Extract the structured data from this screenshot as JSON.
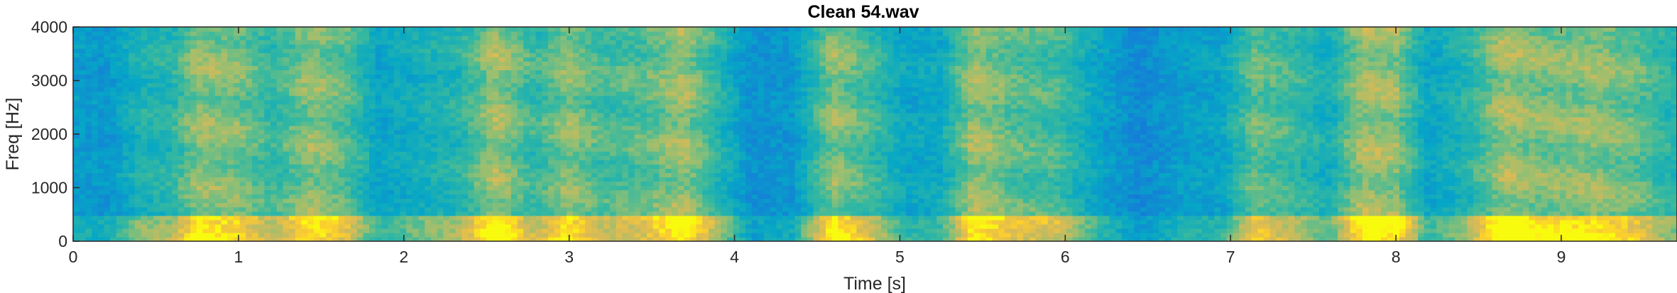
{
  "chart_data": {
    "type": "heatmap",
    "subtype": "spectrogram",
    "title": "Clean 54.wav",
    "xlabel": "Time [s]",
    "ylabel": "Freq [Hz]",
    "xlim": [
      0,
      9.7
    ],
    "ylim": [
      0,
      4000
    ],
    "xticks": [
      0,
      1,
      2,
      3,
      4,
      5,
      6,
      7,
      8,
      9
    ],
    "yticks": [
      0,
      1000,
      2000,
      3000,
      4000
    ],
    "colormap": "parula",
    "colors": {
      "low": "#3a6ee6",
      "mid": "#1fb8a8",
      "midhigh": "#9ac940",
      "high": "#f2cf2e",
      "peak": "#f9f21c",
      "frame": "#262626"
    },
    "energy_profile": [
      {
        "t": 0.0,
        "e": 0.3
      },
      {
        "t": 0.2,
        "e": 0.25
      },
      {
        "t": 0.4,
        "e": 0.5
      },
      {
        "t": 0.6,
        "e": 0.55
      },
      {
        "t": 0.75,
        "e": 0.85
      },
      {
        "t": 1.0,
        "e": 0.8
      },
      {
        "t": 1.2,
        "e": 0.6
      },
      {
        "t": 1.45,
        "e": 0.85
      },
      {
        "t": 1.65,
        "e": 0.7
      },
      {
        "t": 1.85,
        "e": 0.35
      },
      {
        "t": 2.1,
        "e": 0.45
      },
      {
        "t": 2.35,
        "e": 0.55
      },
      {
        "t": 2.55,
        "e": 0.9
      },
      {
        "t": 2.8,
        "e": 0.6
      },
      {
        "t": 3.0,
        "e": 0.85
      },
      {
        "t": 3.2,
        "e": 0.65
      },
      {
        "t": 3.45,
        "e": 0.7
      },
      {
        "t": 3.7,
        "e": 0.9
      },
      {
        "t": 3.9,
        "e": 0.55
      },
      {
        "t": 4.1,
        "e": 0.2
      },
      {
        "t": 4.35,
        "e": 0.25
      },
      {
        "t": 4.6,
        "e": 0.85
      },
      {
        "t": 4.85,
        "e": 0.6
      },
      {
        "t": 5.05,
        "e": 0.35
      },
      {
        "t": 5.25,
        "e": 0.4
      },
      {
        "t": 5.45,
        "e": 0.9
      },
      {
        "t": 5.7,
        "e": 0.7
      },
      {
        "t": 5.95,
        "e": 0.65
      },
      {
        "t": 6.2,
        "e": 0.35
      },
      {
        "t": 6.45,
        "e": 0.15
      },
      {
        "t": 6.7,
        "e": 0.3
      },
      {
        "t": 6.95,
        "e": 0.35
      },
      {
        "t": 7.15,
        "e": 0.75
      },
      {
        "t": 7.4,
        "e": 0.6
      },
      {
        "t": 7.6,
        "e": 0.45
      },
      {
        "t": 7.8,
        "e": 0.9
      },
      {
        "t": 8.0,
        "e": 0.85
      },
      {
        "t": 8.2,
        "e": 0.35
      },
      {
        "t": 8.45,
        "e": 0.55
      },
      {
        "t": 8.65,
        "e": 0.9
      },
      {
        "t": 8.9,
        "e": 0.8
      },
      {
        "t": 9.2,
        "e": 0.85
      },
      {
        "t": 9.45,
        "e": 0.75
      },
      {
        "t": 9.7,
        "e": 0.5
      }
    ]
  }
}
